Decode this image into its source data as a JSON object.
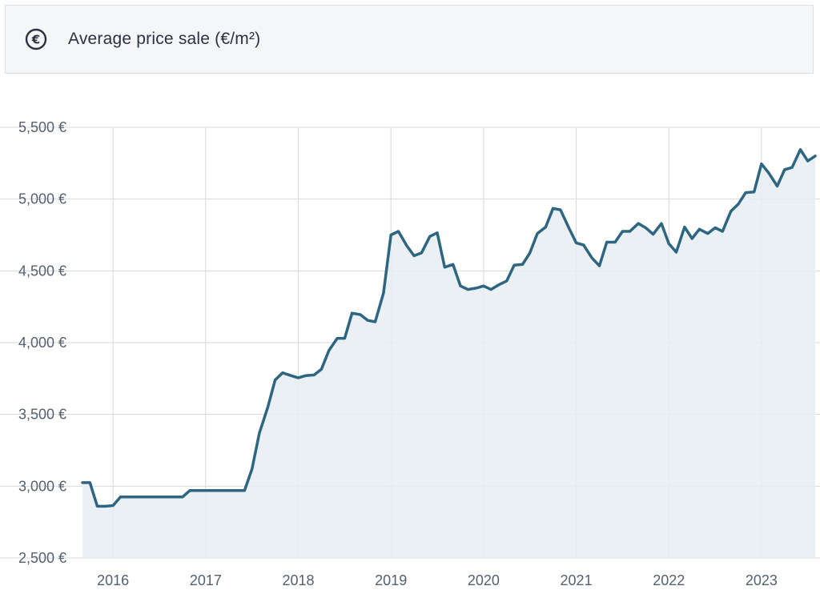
{
  "header": {
    "title": "Average price sale (€/m²)",
    "icon": "euro-circle-icon"
  },
  "colors": {
    "line": "#2e6580",
    "area": "#e8edf2",
    "grid": "#d6d9de",
    "text": "#556070"
  },
  "chart_data": {
    "type": "area",
    "title": "Average price sale (€/m²)",
    "xlabel": "",
    "ylabel": "",
    "ylim": [
      2500,
      5500
    ],
    "yticks": [
      2500,
      3000,
      3500,
      4000,
      4500,
      5000,
      5500
    ],
    "ytick_labels": [
      "2,500 €",
      "3,000 €",
      "3,500 €",
      "4,000 €",
      "4,500 €",
      "5,000 €",
      "5,500 €"
    ],
    "xlim": [
      2015.67,
      2023.58
    ],
    "xticks": [
      2016,
      2017,
      2018,
      2019,
      2020,
      2021,
      2022,
      2023
    ],
    "xtick_labels": [
      "2016",
      "2017",
      "2018",
      "2019",
      "2020",
      "2021",
      "2022",
      "2023"
    ],
    "grid": true,
    "series": [
      {
        "x": [
          2015.67,
          2015.75,
          2015.83,
          2015.92,
          2016.0,
          2016.08,
          2016.17,
          2016.25,
          2016.33,
          2016.42,
          2016.5,
          2016.58,
          2016.67,
          2016.75,
          2016.83,
          2016.92,
          2017.0,
          2017.08,
          2017.17,
          2017.25,
          2017.33,
          2017.42,
          2017.5,
          2017.58,
          2017.67,
          2017.75,
          2017.83,
          2017.92,
          2018.0,
          2018.08,
          2018.17,
          2018.25,
          2018.33,
          2018.42,
          2018.5,
          2018.58,
          2018.67,
          2018.75,
          2018.83,
          2018.92,
          2019.0,
          2019.08,
          2019.17,
          2019.25,
          2019.33,
          2019.42,
          2019.5,
          2019.58,
          2019.67,
          2019.75,
          2019.83,
          2019.92,
          2020.0,
          2020.08,
          2020.17,
          2020.25,
          2020.33,
          2020.42,
          2020.5,
          2020.58,
          2020.67,
          2020.75,
          2020.83,
          2020.92,
          2021.0,
          2021.08,
          2021.17,
          2021.25,
          2021.33,
          2021.42,
          2021.5,
          2021.58,
          2021.67,
          2021.75,
          2021.83,
          2021.92,
          2022.0,
          2022.08,
          2022.17,
          2022.25,
          2022.33,
          2022.42,
          2022.5,
          2022.58,
          2022.67,
          2022.75,
          2022.83,
          2022.92,
          2023.0,
          2023.08,
          2023.17,
          2023.25,
          2023.33,
          2023.42,
          2023.5,
          2023.58
        ],
        "values": [
          3025,
          3025,
          2860,
          2860,
          2865,
          2925,
          2925,
          2925,
          2925,
          2925,
          2925,
          2925,
          2925,
          2925,
          2970,
          2970,
          2970,
          2970,
          2970,
          2970,
          2970,
          2970,
          3120,
          3370,
          3550,
          3740,
          3790,
          3770,
          3755,
          3770,
          3775,
          3815,
          3945,
          4030,
          4030,
          4205,
          4195,
          4155,
          4145,
          4345,
          4750,
          4775,
          4675,
          4605,
          4625,
          4740,
          4765,
          4525,
          4545,
          4395,
          4370,
          4380,
          4395,
          4370,
          4405,
          4430,
          4540,
          4545,
          4625,
          4760,
          4805,
          4935,
          4925,
          4800,
          4695,
          4680,
          4590,
          4535,
          4700,
          4700,
          4775,
          4775,
          4830,
          4800,
          4755,
          4830,
          4690,
          4630,
          4805,
          4725,
          4790,
          4760,
          4800,
          4775,
          4915,
          4965,
          5045,
          5050,
          5245,
          5180,
          5090,
          5205,
          5220,
          5345,
          5265,
          5300
        ]
      }
    ]
  }
}
